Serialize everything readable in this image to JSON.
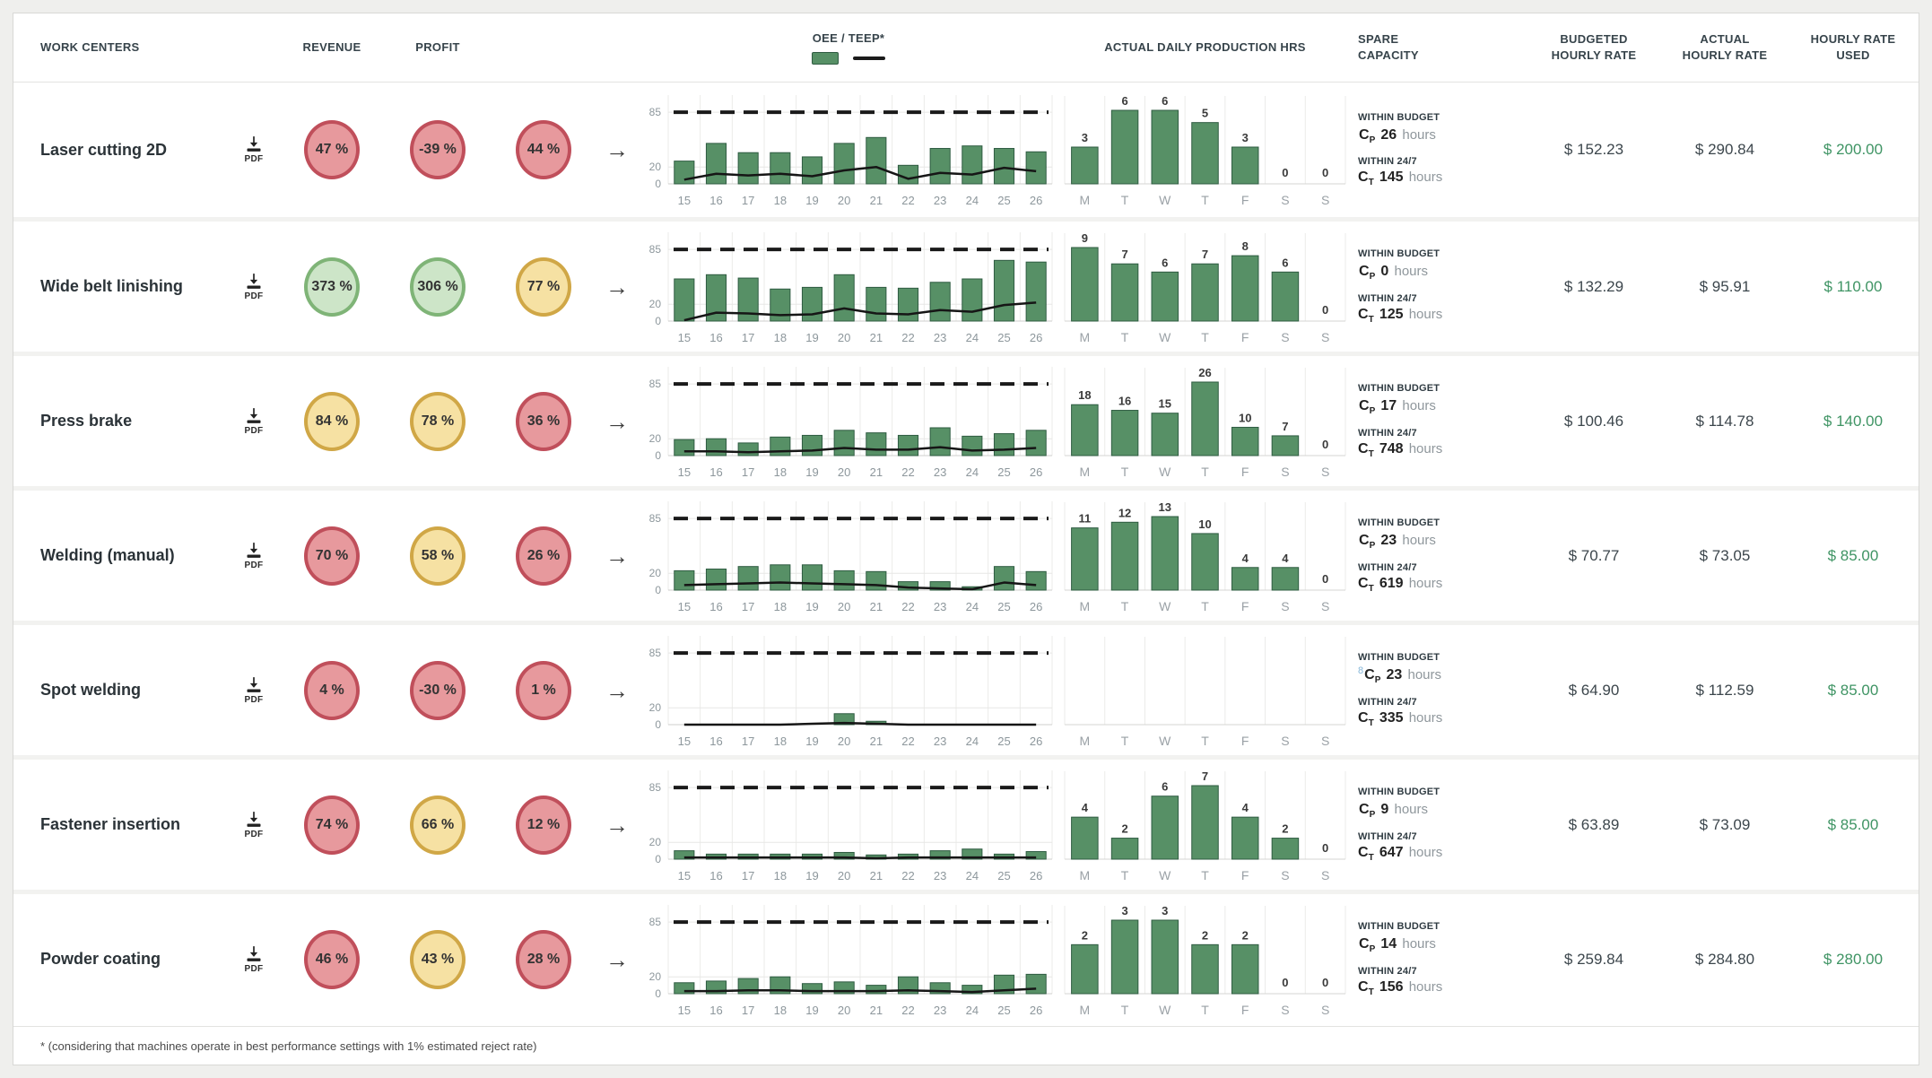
{
  "page": {
    "footnote": "* (considering that machines operate in best performance settings with 1% estimated reject rate)"
  },
  "header": {
    "work_centers": "WORK CENTERS",
    "revenue": "REVENUE",
    "profit": "PROFIT",
    "oee_teep": "OEE / TEEP*",
    "production": "ACTUAL DAILY PRODUCTION HRS",
    "spare_capacity": "SPARE CAPACITY",
    "budgeted_rate": "BUDGETED HOURLY RATE",
    "actual_rate": "ACTUAL HOURLY RATE",
    "rate_used": "HOURLY RATE USED"
  },
  "labels": {
    "pdf": "PDF",
    "within_budget": "WITHIN BUDGET",
    "within_247": "WITHIN 24/7",
    "c": "C",
    "p_sub": "P",
    "t_sub": "T",
    "hours": "hours"
  },
  "icons": {
    "arrow_right": "→"
  },
  "colors": {
    "bar_green": "#579066",
    "bar_green_border": "#2f5c42",
    "teep_line": "#161616",
    "target_dash": "#1a1a1a",
    "kpi_red_bg": "#e7999d",
    "kpi_red_border": "#c04f5b",
    "kpi_green_bg": "#cde5c8",
    "kpi_green_border": "#7fb477",
    "kpi_yellow_bg": "#f6e1a3",
    "kpi_yellow_border": "#d0a746",
    "rate_used_green": "#3f9464",
    "artifact_blue": "#85b6d8",
    "axis_label": "#8d979c",
    "grid": "#ebebe9"
  },
  "chart_meta": {
    "weeks": [
      15,
      16,
      17,
      18,
      19,
      20,
      21,
      22,
      23,
      24,
      25,
      26
    ],
    "days": [
      "M",
      "T",
      "W",
      "T",
      "F",
      "S",
      "S"
    ],
    "y_ticks": [
      85,
      20,
      0
    ],
    "target": 85,
    "y_max": 100
  },
  "rows": [
    {
      "name": "Laser cutting 2D",
      "kpis": [
        {
          "value": "47 %",
          "status": "red"
        },
        {
          "value": "-39 %",
          "status": "red"
        },
        {
          "value": "44 %",
          "status": "red"
        }
      ],
      "oee_bars": [
        27,
        48,
        37,
        37,
        32,
        48,
        55,
        22,
        42,
        45,
        42,
        38
      ],
      "teep_line": [
        5,
        12,
        10,
        12,
        9,
        16,
        20,
        6,
        13,
        11,
        19,
        15
      ],
      "daily_hours": [
        3,
        6,
        6,
        5,
        3,
        0,
        0
      ],
      "cp_hours": "26",
      "ct_hours": "145",
      "budgeted_rate": "$ 152.23",
      "actual_rate": "$ 290.84",
      "rate_used": "$ 200.00"
    },
    {
      "name": "Wide belt linishing",
      "kpis": [
        {
          "value": "373 %",
          "status": "green"
        },
        {
          "value": "306 %",
          "status": "green"
        },
        {
          "value": "77 %",
          "status": "yellow"
        }
      ],
      "oee_bars": [
        50,
        55,
        51,
        38,
        40,
        55,
        40,
        39,
        46,
        50,
        72,
        70
      ],
      "teep_line": [
        1,
        10,
        9,
        7,
        8,
        15,
        9,
        8,
        13,
        11,
        19,
        22
      ],
      "daily_hours": [
        9,
        7,
        6,
        7,
        8,
        6,
        0
      ],
      "cp_hours": "0",
      "ct_hours": "125",
      "budgeted_rate": "$ 132.29",
      "actual_rate": "$ 95.91",
      "rate_used": "$ 110.00"
    },
    {
      "name": "Press brake",
      "kpis": [
        {
          "value": "84 %",
          "status": "yellow"
        },
        {
          "value": "78 %",
          "status": "yellow"
        },
        {
          "value": "36 %",
          "status": "red"
        }
      ],
      "oee_bars": [
        19,
        20,
        15,
        22,
        24,
        30,
        27,
        24,
        33,
        23,
        26,
        30
      ],
      "teep_line": [
        5,
        5,
        4,
        5,
        6,
        9,
        7,
        7,
        10,
        6,
        7,
        9
      ],
      "daily_hours": [
        18,
        16,
        15,
        26,
        10,
        7,
        0
      ],
      "cp_hours": "17",
      "ct_hours": "748",
      "budgeted_rate": "$ 100.46",
      "actual_rate": "$ 114.78",
      "rate_used": "$ 140.00"
    },
    {
      "name": "Welding (manual)",
      "kpis": [
        {
          "value": "70 %",
          "status": "red"
        },
        {
          "value": "58 %",
          "status": "yellow"
        },
        {
          "value": "26 %",
          "status": "red"
        }
      ],
      "oee_bars": [
        23,
        25,
        28,
        30,
        30,
        23,
        22,
        10,
        10,
        4,
        28,
        22
      ],
      "teep_line": [
        6,
        7,
        8,
        9,
        8,
        7,
        6,
        3,
        2,
        1,
        9,
        6
      ],
      "daily_hours": [
        11,
        12,
        13,
        10,
        4,
        4,
        0
      ],
      "cp_hours": "23",
      "ct_hours": "619",
      "budgeted_rate": "$ 70.77",
      "actual_rate": "$ 73.05",
      "rate_used": "$ 85.00"
    },
    {
      "name": "Spot welding",
      "kpis": [
        {
          "value": "4 %",
          "status": "red"
        },
        {
          "value": "-30 %",
          "status": "red"
        },
        {
          "value": "1 %",
          "status": "red"
        }
      ],
      "oee_bars": [
        0,
        0,
        0,
        0,
        0,
        13,
        4,
        0,
        0,
        0,
        0,
        0
      ],
      "teep_line": [
        0,
        0,
        0,
        0,
        1,
        2,
        1,
        0,
        0,
        0,
        0,
        0
      ],
      "daily_hours": [
        null,
        null,
        null,
        null,
        null,
        null,
        null
      ],
      "cp_hours": "23",
      "ct_hours": "335",
      "spare_artifact": "8",
      "budgeted_rate": "$ 64.90",
      "actual_rate": "$ 112.59",
      "rate_used": "$ 85.00"
    },
    {
      "name": "Fastener insertion",
      "kpis": [
        {
          "value": "74 %",
          "status": "red"
        },
        {
          "value": "66 %",
          "status": "yellow"
        },
        {
          "value": "12 %",
          "status": "red"
        }
      ],
      "oee_bars": [
        10,
        6,
        6,
        6,
        6,
        8,
        5,
        6,
        10,
        12,
        6,
        9
      ],
      "teep_line": [
        2,
        2,
        2,
        2,
        2,
        2,
        1,
        2,
        2,
        2,
        2,
        2
      ],
      "daily_hours": [
        4,
        2,
        6,
        7,
        4,
        2,
        0
      ],
      "cp_hours": "9",
      "ct_hours": "647",
      "budgeted_rate": "$ 63.89",
      "actual_rate": "$ 73.09",
      "rate_used": "$ 85.00"
    },
    {
      "name": "Powder coating",
      "kpis": [
        {
          "value": "46 %",
          "status": "red"
        },
        {
          "value": "43 %",
          "status": "yellow"
        },
        {
          "value": "28 %",
          "status": "red"
        }
      ],
      "oee_bars": [
        13,
        15,
        18,
        20,
        12,
        14,
        10,
        20,
        13,
        10,
        22,
        23
      ],
      "teep_line": [
        3,
        3,
        4,
        4,
        3,
        3,
        3,
        4,
        3,
        2,
        4,
        6
      ],
      "daily_hours": [
        2,
        3,
        3,
        2,
        2,
        0,
        0
      ],
      "cp_hours": "14",
      "ct_hours": "156",
      "budgeted_rate": "$ 259.84",
      "actual_rate": "$ 284.80",
      "rate_used": "$ 280.00"
    }
  ]
}
